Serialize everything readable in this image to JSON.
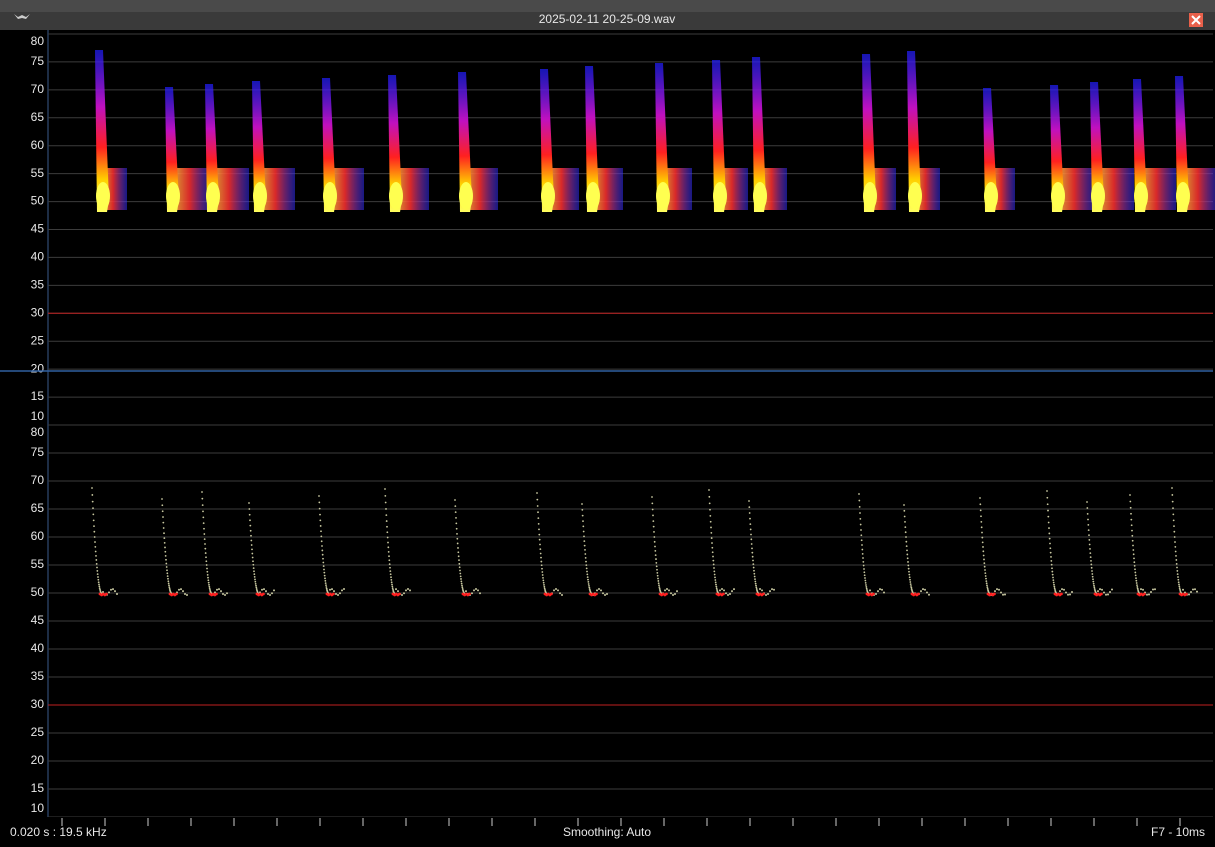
{
  "window": {
    "title": "2025-02-11 20-25-09.wav"
  },
  "chart_data": [
    {
      "type": "spectrogram",
      "ylim": [
        10,
        80
      ],
      "yticks": [
        10,
        15,
        20,
        25,
        30,
        35,
        40,
        45,
        50,
        55,
        60,
        65,
        70,
        75,
        80
      ],
      "reference_line": 30
    },
    {
      "type": "scatter",
      "ylim": [
        10,
        80
      ],
      "yticks": [
        10,
        15,
        20,
        25,
        30,
        35,
        40,
        45,
        50,
        55,
        60,
        65,
        70,
        75,
        80
      ],
      "reference_line": 30
    }
  ],
  "status": {
    "left": "0.020 s : 19.5 kHz",
    "center": "Smoothing: Auto",
    "right": "F7 - 10ms"
  }
}
